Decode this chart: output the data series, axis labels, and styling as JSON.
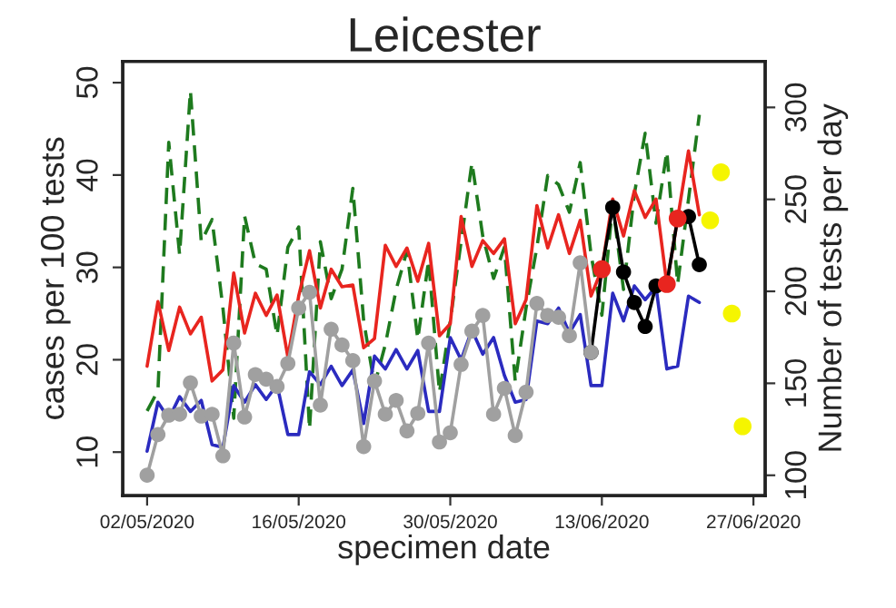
{
  "chart_data": {
    "type": "line",
    "title": "Leicester",
    "xlabel": "specimen date",
    "ylabel": "cases per 100 tests",
    "y2label": "Number of tests per day",
    "xlim": [
      "2020-04-29T18:00",
      "2020-06-28T02:00"
    ],
    "xticks": [
      {
        "value": "2020-05-02",
        "label": "02/05/2020"
      },
      {
        "value": "2020-05-16",
        "label": "16/05/2020"
      },
      {
        "value": "2020-05-30",
        "label": "30/05/2020"
      },
      {
        "value": "2020-06-13",
        "label": "13/06/2020"
      },
      {
        "value": "2020-06-27",
        "label": "27/06/2020"
      }
    ],
    "ylim": [
      5.3,
      52.3
    ],
    "yticks": [
      10,
      20,
      30,
      40,
      50
    ],
    "y2lim": [
      89,
      325
    ],
    "y2ticks": [
      100,
      150,
      200,
      250,
      300
    ],
    "grid": false,
    "legend": false,
    "x": [
      "2020-05-02",
      "2020-05-03",
      "2020-05-04",
      "2020-05-05",
      "2020-05-06",
      "2020-05-07",
      "2020-05-08",
      "2020-05-09",
      "2020-05-10",
      "2020-05-11",
      "2020-05-12",
      "2020-05-13",
      "2020-05-14",
      "2020-05-15",
      "2020-05-16",
      "2020-05-17",
      "2020-05-18",
      "2020-05-19",
      "2020-05-20",
      "2020-05-21",
      "2020-05-22",
      "2020-05-23",
      "2020-05-24",
      "2020-05-25",
      "2020-05-26",
      "2020-05-27",
      "2020-05-28",
      "2020-05-29",
      "2020-05-30",
      "2020-05-31",
      "2020-06-01",
      "2020-06-02",
      "2020-06-03",
      "2020-06-04",
      "2020-06-05",
      "2020-06-06",
      "2020-06-07",
      "2020-06-08",
      "2020-06-09",
      "2020-06-10",
      "2020-06-11",
      "2020-06-12",
      "2020-06-13",
      "2020-06-14",
      "2020-06-15",
      "2020-06-16",
      "2020-06-17",
      "2020-06-18",
      "2020-06-19",
      "2020-06-20",
      "2020-06-21",
      "2020-06-22"
    ],
    "series": [
      {
        "axis": "y2",
        "color": "#1e7a1e",
        "line_style": "dashed",
        "marker": "none",
        "values": [
          135,
          146,
          281,
          220,
          309,
          227,
          239,
          191,
          131,
          241,
          215,
          212,
          176,
          224,
          235,
          125,
          227,
          196,
          212,
          256,
          184,
          149,
          171,
          201,
          222,
          174,
          217,
          145,
          184,
          227,
          270,
          230,
          207,
          224,
          151,
          191,
          224,
          263,
          258,
          243,
          270,
          220,
          187,
          247,
          201,
          253,
          286,
          237,
          276,
          204,
          250,
          296
        ]
      },
      {
        "color": "#e8251f",
        "line_style": "solid",
        "marker": "none",
        "values": [
          19.3,
          26.3,
          21.0,
          25.7,
          22.8,
          24.6,
          17.7,
          18.9,
          29.4,
          22.9,
          27.2,
          24.8,
          27.0,
          20.3,
          26.9,
          31.8,
          25.6,
          29.8,
          27.9,
          28.1,
          21.3,
          22.3,
          32.4,
          30.1,
          32.1,
          28.5,
          32.6,
          22.6,
          23.9,
          35.5,
          30.1,
          32.9,
          31.5,
          33.1,
          23.9,
          26.5,
          36.7,
          32.1,
          35.7,
          31.5,
          35.1,
          26.9,
          29.8,
          37.4,
          33.4,
          38.3,
          35.4,
          37.4,
          28.2,
          35.3,
          42.6,
          35.7
        ]
      },
      {
        "color": "#2b2bbf",
        "line_style": "solid",
        "marker": "none",
        "values": [
          10.1,
          15.4,
          13.6,
          16.0,
          14.4,
          15.6,
          10.8,
          10.5,
          17.2,
          15.4,
          17.3,
          15.7,
          17.3,
          11.9,
          11.9,
          18.7,
          17.3,
          19.3,
          17.2,
          18.9,
          13.1,
          20.4,
          19.0,
          21.1,
          19.0,
          21.0,
          14.4,
          14.4,
          22.4,
          20.0,
          23.2,
          20.6,
          22.4,
          18.3,
          15.4,
          15.7,
          24.2,
          23.9,
          25.6,
          22.9,
          24.9,
          17.2,
          17.2,
          27.2,
          24.2,
          28.0,
          26.5,
          27.9,
          19.0,
          19.3,
          26.9,
          26.2
        ]
      },
      {
        "color": "#000000",
        "line_style": "solid",
        "marker": "circle",
        "x": [
          "2020-06-12",
          "2020-06-13",
          "2020-06-14",
          "2020-06-15",
          "2020-06-16",
          "2020-06-17",
          "2020-06-18",
          "2020-06-19",
          "2020-06-20",
          "2020-06-21",
          "2020-06-22"
        ],
        "values": [
          20.8,
          29.8,
          36.5,
          29.5,
          26.2,
          23.6,
          28.0,
          28.2,
          35.3,
          35.5,
          30.3
        ]
      },
      {
        "color": "#a0a0a0",
        "line_style": "solid",
        "marker": "circle",
        "x": [
          "2020-05-02",
          "2020-05-03",
          "2020-05-04",
          "2020-05-05",
          "2020-05-06",
          "2020-05-07",
          "2020-05-08",
          "2020-05-09",
          "2020-05-10",
          "2020-05-11",
          "2020-05-12",
          "2020-05-13",
          "2020-05-14",
          "2020-05-15",
          "2020-05-16",
          "2020-05-17",
          "2020-05-18",
          "2020-05-19",
          "2020-05-20",
          "2020-05-21",
          "2020-05-22",
          "2020-05-23",
          "2020-05-24",
          "2020-05-25",
          "2020-05-26",
          "2020-05-27",
          "2020-05-28",
          "2020-05-29",
          "2020-05-30",
          "2020-05-31",
          "2020-06-01",
          "2020-06-02",
          "2020-06-03",
          "2020-06-04",
          "2020-06-05",
          "2020-06-06",
          "2020-06-07",
          "2020-06-08",
          "2020-06-09",
          "2020-06-10",
          "2020-06-11",
          "2020-06-12"
        ],
        "values": [
          7.5,
          11.9,
          14.0,
          14.1,
          17.5,
          13.9,
          14.1,
          9.6,
          21.8,
          13.8,
          18.4,
          17.9,
          17.1,
          19.6,
          25.6,
          27.3,
          15.1,
          23.3,
          21.6,
          19.9,
          10.6,
          17.7,
          14.1,
          15.6,
          12.3,
          14.2,
          21.8,
          11.1,
          12.1,
          19.5,
          23.1,
          24.8,
          14.1,
          16.9,
          11.8,
          16.5,
          26.1,
          24.8,
          24.6,
          22.6,
          30.5,
          20.8
        ]
      },
      {
        "type": "scatter",
        "color": "#e8251f",
        "marker": "circle",
        "x": [
          "2020-06-13",
          "2020-06-19",
          "2020-06-20"
        ],
        "values": [
          29.8,
          28.2,
          35.3
        ]
      },
      {
        "type": "scatter",
        "color": "#f5f500",
        "marker": "circle",
        "x": [
          "2020-06-23",
          "2020-06-24",
          "2020-06-25",
          "2020-06-26"
        ],
        "values": [
          35.1,
          40.3,
          25.0,
          12.8
        ]
      }
    ]
  }
}
